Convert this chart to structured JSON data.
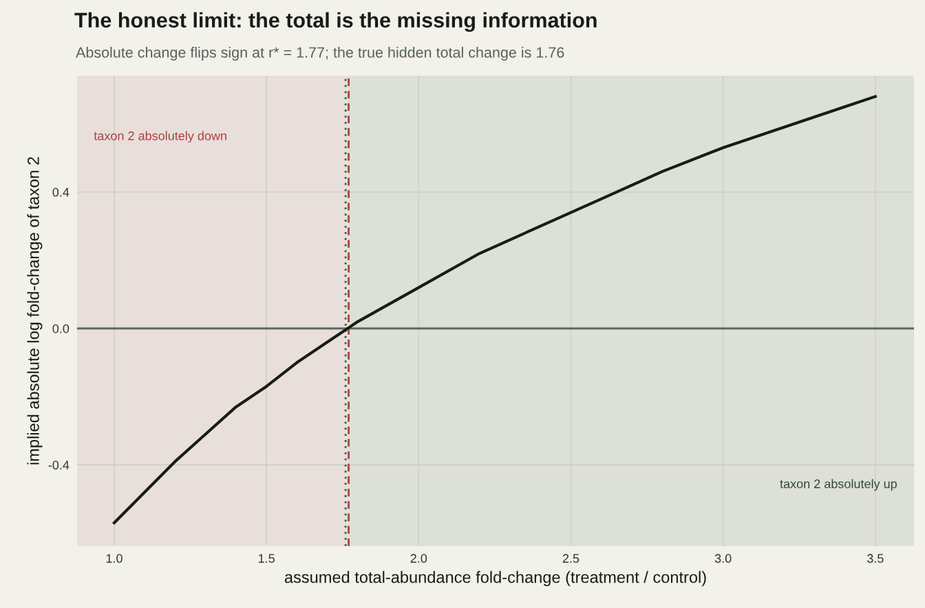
{
  "chart_data": {
    "type": "line",
    "title": "The honest limit: the total is the missing information",
    "subtitle": "Absolute change flips sign at r* = 1.77; the true hidden total change is 1.76",
    "xlabel": "assumed total-abundance fold-change (treatment / control)",
    "ylabel": "implied absolute log fold-change of taxon 2",
    "x": [
      1.0,
      1.1,
      1.2,
      1.3,
      1.4,
      1.5,
      1.6,
      1.7,
      1.8,
      1.9,
      2.0,
      2.2,
      2.4,
      2.6,
      2.8,
      3.0,
      3.2,
      3.4,
      3.5
    ],
    "series": [
      {
        "color": "#161c18",
        "values": [
          -0.57,
          -0.48,
          -0.39,
          -0.31,
          -0.23,
          -0.17,
          -0.1,
          -0.04,
          0.02,
          0.07,
          0.12,
          0.22,
          0.3,
          0.38,
          0.46,
          0.53,
          0.59,
          0.65,
          0.68
        ]
      }
    ],
    "xlim": [
      0.878,
      3.627
    ],
    "ylim": [
      -0.638,
      0.741
    ],
    "xticks": [
      {
        "value": 1.0,
        "label": "1.0"
      },
      {
        "value": 1.5,
        "label": "1.5"
      },
      {
        "value": 2.0,
        "label": "2.0"
      },
      {
        "value": 2.5,
        "label": "2.5"
      },
      {
        "value": 3.0,
        "label": "3.0"
      },
      {
        "value": 3.5,
        "label": "3.5"
      }
    ],
    "yticks": [
      {
        "value": -0.4,
        "label": "-0.4"
      },
      {
        "value": 0.0,
        "label": "0.0"
      },
      {
        "value": 0.4,
        "label": "0.4"
      }
    ],
    "grid": true,
    "line_style": "solid",
    "marker": "none",
    "bands": [
      {
        "axis": "x",
        "from": 0.878,
        "to": 1.77,
        "label": "taxon 2 absolutely down",
        "color": "#e8dfda"
      },
      {
        "axis": "x",
        "from": 1.77,
        "to": 3.627,
        "label": "taxon 2 absolutely up",
        "color": "#dde0d7"
      }
    ],
    "ref_lines": [
      {
        "axis": "y",
        "value": 0,
        "color": "#5c6660",
        "line_style": "solid"
      },
      {
        "axis": "x",
        "value": 1.77,
        "color": "#b04040",
        "line_style": "dashed"
      },
      {
        "axis": "x",
        "value": 1.76,
        "color": "#4a5450",
        "line_style": "dotted"
      }
    ]
  }
}
